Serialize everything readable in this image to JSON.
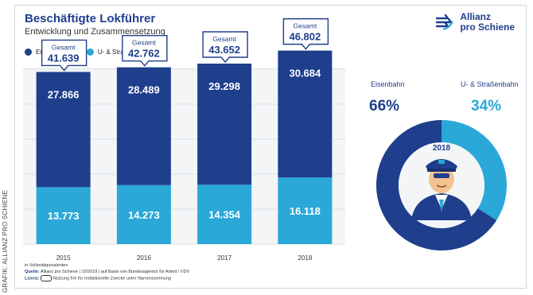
{
  "side_credit": "GRAFIK: ALLIANZ PRO SCHIENE",
  "title": "Beschäftigte Lokführer",
  "subtitle": "Entwicklung und Zusammensetzung",
  "logo": {
    "line1": "Allianz",
    "line2": "pro Schiene",
    "icon": "logo-arrows-icon"
  },
  "legend": [
    {
      "label": "Eisenbahn",
      "color": "#1f3f8c"
    },
    {
      "label": "U- & Straßenbahn",
      "color": "#2aa8d8"
    }
  ],
  "chart_data": [
    {
      "type": "bar",
      "stacked": true,
      "categories": [
        "2015",
        "2016",
        "2017",
        "2018"
      ],
      "series": [
        {
          "name": "Eisenbahn",
          "values": [
            27866,
            28489,
            29298,
            30684
          ],
          "color": "#1f3f8c",
          "labels": [
            "27.866",
            "28.489",
            "29.298",
            "30.684"
          ]
        },
        {
          "name": "U- & Straßenbahn",
          "values": [
            13773,
            14273,
            14354,
            16118
          ],
          "color": "#2aa8d8",
          "labels": [
            "13.773",
            "14.273",
            "14.354",
            "16.118"
          ]
        }
      ],
      "totals": {
        "label": "Gesamt",
        "values": [
          "41.639",
          "42.762",
          "43.652",
          "46.802"
        ]
      },
      "grid": true,
      "legend_position": "top-left"
    },
    {
      "type": "pie",
      "donut": true,
      "center_label": "2018",
      "slices": [
        {
          "name": "Eisenbahn",
          "percent": 66,
          "label": "66%",
          "color": "#1f3f8c"
        },
        {
          "name": "U- & Straßenbahn",
          "percent": 34,
          "label": "34%",
          "color": "#2aa8d8"
        }
      ]
    }
  ],
  "notes": {
    "unit_note": "in Vollzeitäquivalenten",
    "source_label": "Quelle:",
    "source_text": "Allianz pro Schiene | 10/2019 | auf Basis von Bundesagentur für Arbeit / VDV",
    "license_label": "Lizenz:",
    "license_text": "Nutzung frei für redaktionelle Zwecke unter Namensnennung"
  }
}
